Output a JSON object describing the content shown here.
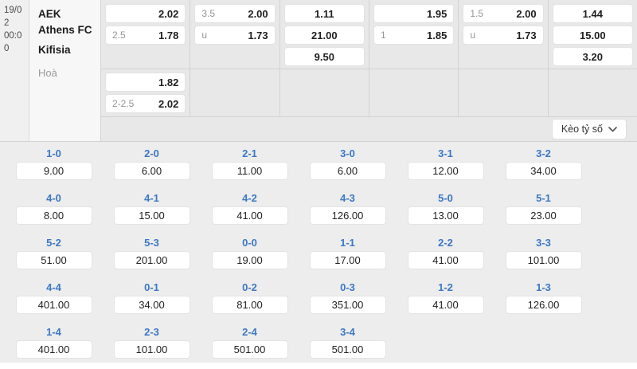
{
  "match": {
    "datetime_lines": [
      "19/0",
      "2",
      "00:0",
      "0"
    ],
    "home_team": "AEK Athens FC",
    "away_team": "Kifisia",
    "draw_label": "Hoà"
  },
  "top_odds": {
    "columns": [
      {
        "row1": [
          {
            "align": "right",
            "label": "",
            "value": "2.02"
          },
          {
            "align": "split",
            "label": "2.5",
            "value": "1.78"
          }
        ],
        "row2": [
          {
            "align": "right",
            "label": "",
            "value": "1.82"
          },
          {
            "align": "split",
            "label": "2-2.5",
            "value": "2.02"
          }
        ]
      },
      {
        "row1": [
          {
            "align": "split",
            "label": "3.5",
            "value": "2.00"
          },
          {
            "align": "split",
            "label": "u",
            "value": "1.73"
          }
        ],
        "row2": []
      },
      {
        "row1": [
          {
            "align": "center",
            "label": "",
            "value": "1.11"
          },
          {
            "align": "center",
            "label": "",
            "value": "21.00"
          },
          {
            "align": "center",
            "label": "",
            "value": "9.50"
          }
        ],
        "row2": []
      },
      {
        "row1": [
          {
            "align": "right",
            "label": "",
            "value": "1.95"
          },
          {
            "align": "split",
            "label": "1",
            "value": "1.85"
          }
        ],
        "row2": []
      },
      {
        "row1": [
          {
            "align": "split",
            "label": "1.5",
            "value": "2.00"
          },
          {
            "align": "split",
            "label": "u",
            "value": "1.73"
          }
        ],
        "row2": []
      },
      {
        "row1": [
          {
            "align": "center",
            "label": "",
            "value": "1.44"
          },
          {
            "align": "center",
            "label": "",
            "value": "15.00"
          },
          {
            "align": "center",
            "label": "",
            "value": "3.20"
          }
        ],
        "row2": []
      }
    ]
  },
  "score_market": {
    "dropdown_label": "Kèo tỷ số",
    "rows": [
      [
        {
          "score": "1-0",
          "odds": "9.00"
        },
        {
          "score": "2-0",
          "odds": "6.00"
        },
        {
          "score": "2-1",
          "odds": "11.00"
        },
        {
          "score": "3-0",
          "odds": "6.00"
        },
        {
          "score": "3-1",
          "odds": "12.00"
        },
        {
          "score": "3-2",
          "odds": "34.00"
        }
      ],
      [
        {
          "score": "4-0",
          "odds": "8.00"
        },
        {
          "score": "4-1",
          "odds": "15.00"
        },
        {
          "score": "4-2",
          "odds": "41.00"
        },
        {
          "score": "4-3",
          "odds": "126.00"
        },
        {
          "score": "5-0",
          "odds": "13.00"
        },
        {
          "score": "5-1",
          "odds": "23.00"
        }
      ],
      [
        {
          "score": "5-2",
          "odds": "51.00"
        },
        {
          "score": "5-3",
          "odds": "201.00"
        },
        {
          "score": "0-0",
          "odds": "19.00"
        },
        {
          "score": "1-1",
          "odds": "17.00"
        },
        {
          "score": "2-2",
          "odds": "41.00"
        },
        {
          "score": "3-3",
          "odds": "101.00"
        }
      ],
      [
        {
          "score": "4-4",
          "odds": "401.00"
        },
        {
          "score": "0-1",
          "odds": "34.00"
        },
        {
          "score": "0-2",
          "odds": "81.00"
        },
        {
          "score": "0-3",
          "odds": "351.00"
        },
        {
          "score": "1-2",
          "odds": "41.00"
        },
        {
          "score": "1-3",
          "odds": "126.00"
        }
      ],
      [
        {
          "score": "1-4",
          "odds": "401.00"
        },
        {
          "score": "2-3",
          "odds": "101.00"
        },
        {
          "score": "2-4",
          "odds": "501.00"
        },
        {
          "score": "3-4",
          "odds": "501.00"
        }
      ]
    ]
  },
  "colors": {
    "score_label_blue": "#3b78c4",
    "section_bg": "#e8e8e8",
    "grid_bg": "#ededed"
  }
}
